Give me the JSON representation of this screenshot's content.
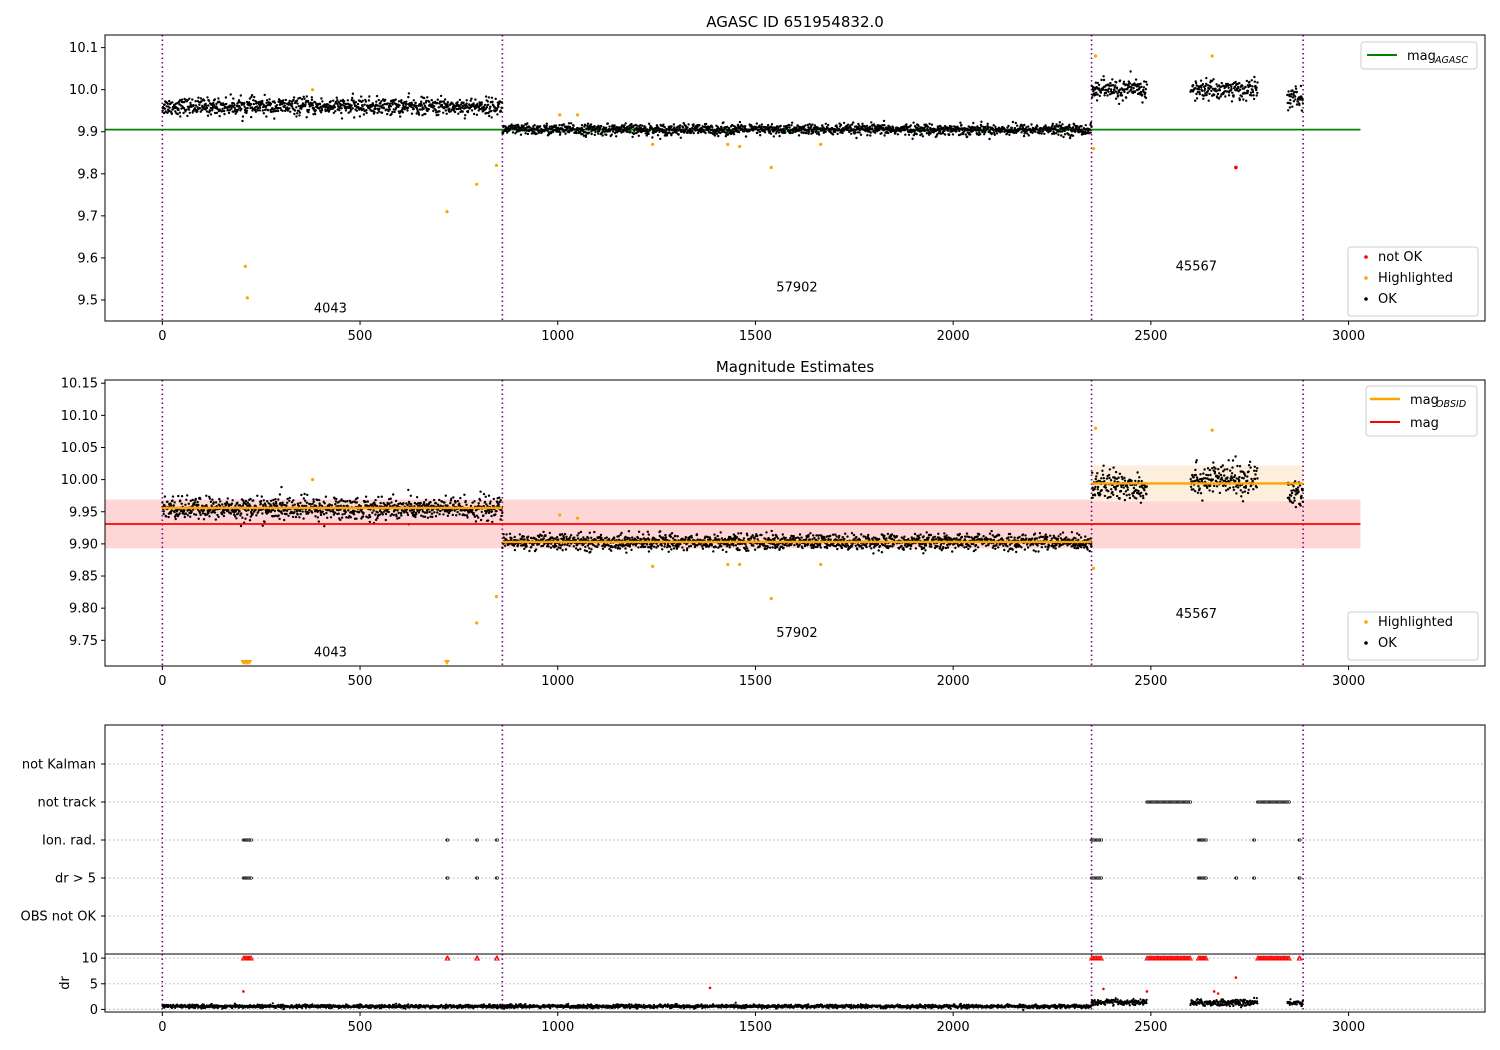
{
  "figure": {
    "title_top": "AGASC ID 651954832.0",
    "title_mid": "Magnitude Estimates"
  },
  "colors": {
    "ok": "#000000",
    "highlighted": "#ffa500",
    "not_ok": "#ff0000",
    "agasc_line": "#008000",
    "mag_line": "#ff0000",
    "obsid_line": "#ffa500",
    "obs_boundary": "#800080",
    "mag_band": "#ffd6d6",
    "obsid_band": "#fdeedd"
  },
  "chart_data": [
    {
      "type": "scatter",
      "title": "AGASC ID 651954832.0",
      "xlim": [
        -145,
        3345
      ],
      "ylim": [
        9.45,
        10.13
      ],
      "xticks": [
        0,
        500,
        1000,
        1500,
        2000,
        2500,
        3000
      ],
      "yticks": [
        9.5,
        9.6,
        9.7,
        9.8,
        9.9,
        10.0,
        10.1
      ],
      "ytick_labels": [
        "9.5",
        "9.6",
        "9.7",
        "9.8",
        "9.9",
        "10.0",
        "10.1"
      ],
      "obs_boundaries": [
        0,
        860,
        2350,
        2885
      ],
      "obsid_labels": [
        {
          "text": "4043",
          "x": 425,
          "y": 9.47
        },
        {
          "text": "57902",
          "x": 1605,
          "y": 9.52
        },
        {
          "text": "45567",
          "x": 2615,
          "y": 9.57
        }
      ],
      "mag_agasc": {
        "value": 9.905,
        "x": [
          -145,
          3030
        ]
      },
      "ok_segments": [
        {
          "x": [
            0,
            860
          ],
          "center": 9.96,
          "spread": 0.018
        },
        {
          "x": [
            860,
            2350
          ],
          "center": 9.905,
          "spread": 0.012
        },
        {
          "x": [
            2350,
            2490
          ],
          "center": 10.0,
          "spread": 0.022
        },
        {
          "x": [
            2600,
            2770
          ],
          "center": 10.0,
          "spread": 0.022
        },
        {
          "x": [
            2845,
            2885
          ],
          "center": 9.98,
          "spread": 0.022
        }
      ],
      "highlighted": [
        [
          210,
          9.58
        ],
        [
          215,
          9.505
        ],
        [
          380,
          10.0
        ],
        [
          720,
          9.71
        ],
        [
          795,
          9.775
        ],
        [
          845,
          9.82
        ],
        [
          1005,
          9.94
        ],
        [
          1050,
          9.94
        ],
        [
          1240,
          9.87
        ],
        [
          1430,
          9.87
        ],
        [
          1460,
          9.865
        ],
        [
          1540,
          9.815
        ],
        [
          1665,
          9.87
        ],
        [
          2355,
          9.86
        ],
        [
          2360,
          10.08
        ],
        [
          2655,
          10.08
        ]
      ],
      "not_ok": [
        [
          2715,
          9.815
        ]
      ],
      "legend_top": [
        {
          "label": "mag",
          "subscript": "AGASC",
          "color": "#008000"
        }
      ],
      "legend_bottom": [
        {
          "label": "not OK"
        },
        {
          "label": "Highlighted"
        },
        {
          "label": "OK"
        }
      ]
    },
    {
      "type": "scatter",
      "title": "Magnitude Estimates",
      "xlim": [
        -145,
        3345
      ],
      "ylim": [
        9.71,
        10.155
      ],
      "xticks": [
        0,
        500,
        1000,
        1500,
        2000,
        2500,
        3000
      ],
      "yticks": [
        9.75,
        9.8,
        9.85,
        9.9,
        9.95,
        10.0,
        10.05,
        10.1,
        10.15
      ],
      "ytick_labels": [
        "9.75",
        "9.80",
        "9.85",
        "9.90",
        "9.95",
        "10.00",
        "10.05",
        "10.10",
        "10.15"
      ],
      "obs_boundaries": [
        0,
        860,
        2350,
        2885
      ],
      "obsid_labels": [
        {
          "text": "4043",
          "x": 425,
          "y": 9.725
        },
        {
          "text": "57902",
          "x": 1605,
          "y": 9.755
        },
        {
          "text": "45567",
          "x": 2615,
          "y": 9.785
        }
      ],
      "mag": {
        "value": 9.931,
        "band": [
          9.893,
          9.969
        ],
        "x": [
          -145,
          3030
        ]
      },
      "mag_obsid": [
        {
          "x": [
            0,
            860
          ],
          "value": 9.956
        },
        {
          "x": [
            860,
            2350
          ],
          "value": 9.903
        },
        {
          "x": [
            2350,
            2885
          ],
          "value": 9.994,
          "band": [
            9.966,
            10.022
          ]
        }
      ],
      "ok_segments": [
        {
          "x": [
            0,
            860
          ],
          "center": 9.955,
          "spread": 0.016
        },
        {
          "x": [
            860,
            2350
          ],
          "center": 9.903,
          "spread": 0.011
        },
        {
          "x": [
            2350,
            2490
          ],
          "center": 9.99,
          "spread": 0.022
        },
        {
          "x": [
            2600,
            2770
          ],
          "center": 10.0,
          "spread": 0.022
        },
        {
          "x": [
            2845,
            2885
          ],
          "center": 9.98,
          "spread": 0.022
        }
      ],
      "highlighted": [
        [
          380,
          10.0
        ],
        [
          795,
          9.777
        ],
        [
          845,
          9.818
        ],
        [
          1005,
          9.945
        ],
        [
          1050,
          9.94
        ],
        [
          1240,
          9.865
        ],
        [
          1430,
          9.868
        ],
        [
          1460,
          9.868
        ],
        [
          1540,
          9.815
        ],
        [
          1665,
          9.868
        ],
        [
          2355,
          9.862
        ],
        [
          2360,
          10.08
        ],
        [
          2655,
          10.077
        ]
      ],
      "highlighted_clipped": [
        205,
        210,
        215,
        220,
        720
      ],
      "legend_top": [
        {
          "label": "mag",
          "subscript": "OBSID",
          "color": "#ffa500"
        },
        {
          "label": "mag",
          "subscript": "",
          "color": "#ff0000"
        }
      ],
      "legend_bottom": [
        {
          "label": "Highlighted"
        },
        {
          "label": "OK"
        }
      ]
    },
    {
      "type": "scatter",
      "title": "",
      "xlim": [
        -145,
        3345
      ],
      "flag_rows": [
        "not Kalman",
        "not track",
        "Ion. rad.",
        "dr > 5",
        "OBS not OK"
      ],
      "obs_boundaries": [
        0,
        860,
        2350,
        2885
      ],
      "flags": {
        "not track": [
          [
            2490,
            2600
          ],
          [
            2770,
            2850
          ]
        ],
        "Ion. rad.": [
          [
            205,
            225
          ],
          [
            720,
            722
          ],
          [
            795,
            797
          ],
          [
            845,
            847
          ],
          [
            2350,
            2375
          ],
          [
            2620,
            2640
          ],
          [
            2760,
            2762
          ],
          [
            2875,
            2877
          ]
        ],
        "dr > 5": [
          [
            205,
            225
          ],
          [
            720,
            722
          ],
          [
            795,
            797
          ],
          [
            845,
            847
          ],
          [
            2350,
            2375
          ],
          [
            2620,
            2640
          ],
          [
            2715,
            2717
          ],
          [
            2760,
            2762
          ],
          [
            2875,
            2877
          ]
        ]
      }
    },
    {
      "type": "scatter",
      "title": "",
      "ylabel": "dr",
      "xlim": [
        -145,
        3345
      ],
      "ylim": [
        -0.5,
        10.8
      ],
      "xticks": [
        0,
        500,
        1000,
        1500,
        2000,
        2500,
        3000
      ],
      "yticks": [
        0,
        5,
        10
      ],
      "ytick_labels": [
        "0",
        "5",
        "10"
      ],
      "obs_boundaries": [
        0,
        860,
        2350,
        2885
      ],
      "ok_segments": [
        {
          "x": [
            0,
            2350
          ],
          "center": 0.6,
          "spread": 0.3
        },
        {
          "x": [
            2350,
            2490
          ],
          "center": 1.4,
          "spread": 0.5
        },
        {
          "x": [
            2600,
            2770
          ],
          "center": 1.3,
          "spread": 0.6
        },
        {
          "x": [
            2845,
            2885
          ],
          "center": 1.3,
          "spread": 0.5
        }
      ],
      "not_ok_clipped_x": [
        [
          205,
          225
        ],
        [
          720,
          722
        ],
        [
          795,
          797
        ],
        [
          845,
          847
        ],
        [
          2350,
          2375
        ],
        [
          2490,
          2600
        ],
        [
          2620,
          2640
        ],
        [
          2770,
          2850
        ],
        [
          2875,
          2877
        ]
      ],
      "not_ok": [
        [
          205,
          3.5
        ],
        [
          1385,
          4.2
        ],
        [
          2380,
          4.0
        ],
        [
          2490,
          3.5
        ],
        [
          2660,
          3.5
        ],
        [
          2670,
          3.1
        ],
        [
          2715,
          6.2
        ]
      ]
    }
  ]
}
